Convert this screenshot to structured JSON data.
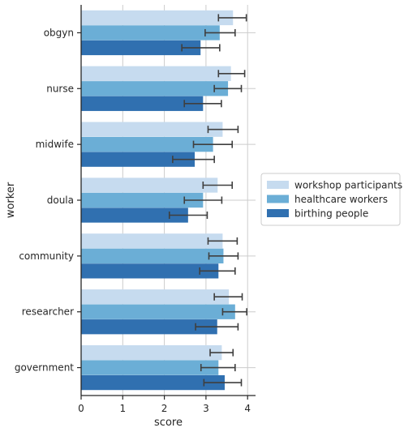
{
  "chart_data": {
    "type": "bar",
    "orientation": "horizontal",
    "xlabel": "score",
    "ylabel": "worker",
    "xlim": [
      0,
      4.2
    ],
    "xticks": [
      "0",
      "1",
      "2",
      "3",
      "4"
    ],
    "grid": true,
    "legend_position": "right",
    "categories": [
      "obgyn",
      "nurse",
      "midwife",
      "doula",
      "community",
      "researcher",
      "government"
    ],
    "series": [
      {
        "name": "workshop participants",
        "color": "#c6dbef",
        "values": [
          3.65,
          3.6,
          3.4,
          3.28,
          3.4,
          3.55,
          3.38
        ],
        "err_low": [
          3.3,
          3.3,
          3.05,
          2.93,
          3.05,
          3.2,
          3.1
        ],
        "err_high": [
          3.97,
          3.93,
          3.77,
          3.63,
          3.75,
          3.87,
          3.65
        ]
      },
      {
        "name": "healthcare workers",
        "color": "#6baed6",
        "values": [
          3.33,
          3.53,
          3.17,
          2.93,
          3.42,
          3.7,
          3.3
        ],
        "err_low": [
          2.98,
          3.2,
          2.7,
          2.48,
          3.07,
          3.4,
          2.88
        ],
        "err_high": [
          3.7,
          3.85,
          3.63,
          3.38,
          3.77,
          3.98,
          3.7
        ]
      },
      {
        "name": "birthing people",
        "color": "#3070b0",
        "values": [
          2.87,
          2.93,
          2.73,
          2.57,
          3.3,
          3.27,
          3.45
        ],
        "err_low": [
          2.42,
          2.48,
          2.2,
          2.12,
          2.85,
          2.75,
          2.95
        ],
        "err_high": [
          3.33,
          3.37,
          3.2,
          3.03,
          3.7,
          3.77,
          3.85
        ]
      }
    ]
  }
}
